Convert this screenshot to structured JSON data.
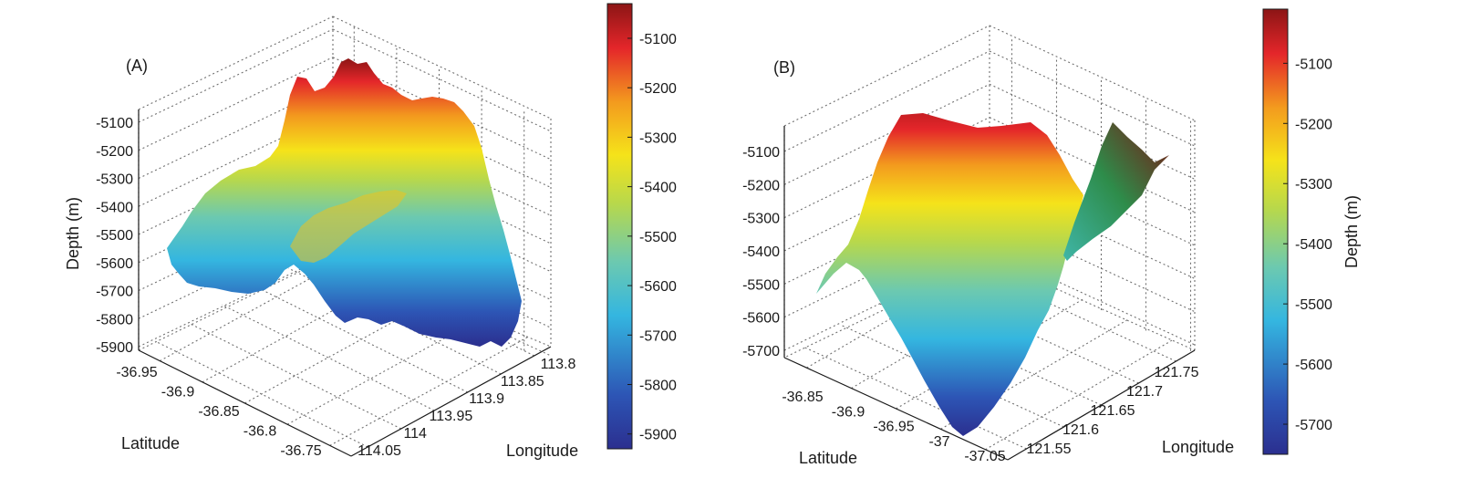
{
  "chart_data": [
    {
      "panel": "(A)",
      "type": "surface3d",
      "zlabel": "Depth (m)",
      "xlabel": "Latitude",
      "ylabel": "Longitude",
      "z_ticks": [
        "-5100",
        "-5200",
        "-5300",
        "-5400",
        "-5500",
        "-5600",
        "-5700",
        "-5800",
        "-5900"
      ],
      "lat_ticks": [
        "-36.95",
        "-36.9",
        "-36.85",
        "-36.8",
        "-36.75"
      ],
      "lon_ticks": [
        "113.8",
        "113.85",
        "113.9",
        "113.95",
        "114",
        "114.05"
      ],
      "zlim": [
        -5930,
        -5020
      ],
      "colorbar": {
        "label": "",
        "ticks": [
          "-5100",
          "-5200",
          "-5300",
          "-5400",
          "-5500",
          "-5600",
          "-5700",
          "-5800",
          "-5900"
        ],
        "range": [
          -5930,
          -5030
        ]
      },
      "grid": true
    },
    {
      "panel": "(B)",
      "type": "surface3d",
      "zlabel": "",
      "xlabel": "Latitude",
      "ylabel": "Longitude",
      "z_ticks": [
        "-5100",
        "-5200",
        "-5300",
        "-5400",
        "-5500",
        "-5600",
        "-5700"
      ],
      "lat_ticks": [
        "-36.85",
        "-36.9",
        "-36.95",
        "-37",
        "-37.05"
      ],
      "lon_ticks": [
        "121.75",
        "121.7",
        "121.65",
        "121.6",
        "121.55"
      ],
      "zlim": [
        -5760,
        -5010
      ],
      "colorbar": {
        "label": "Depth (m)",
        "ticks": [
          "-5100",
          "-5200",
          "-5300",
          "-5400",
          "-5500",
          "-5600",
          "-5700"
        ],
        "range": [
          -5750,
          -5010
        ]
      },
      "grid": true
    }
  ],
  "colormap": [
    "#00007f",
    "#0000ff",
    "#007fff",
    "#00ffff",
    "#7fff7f",
    "#ffff00",
    "#ff7f00",
    "#ff0000",
    "#7f0000"
  ]
}
